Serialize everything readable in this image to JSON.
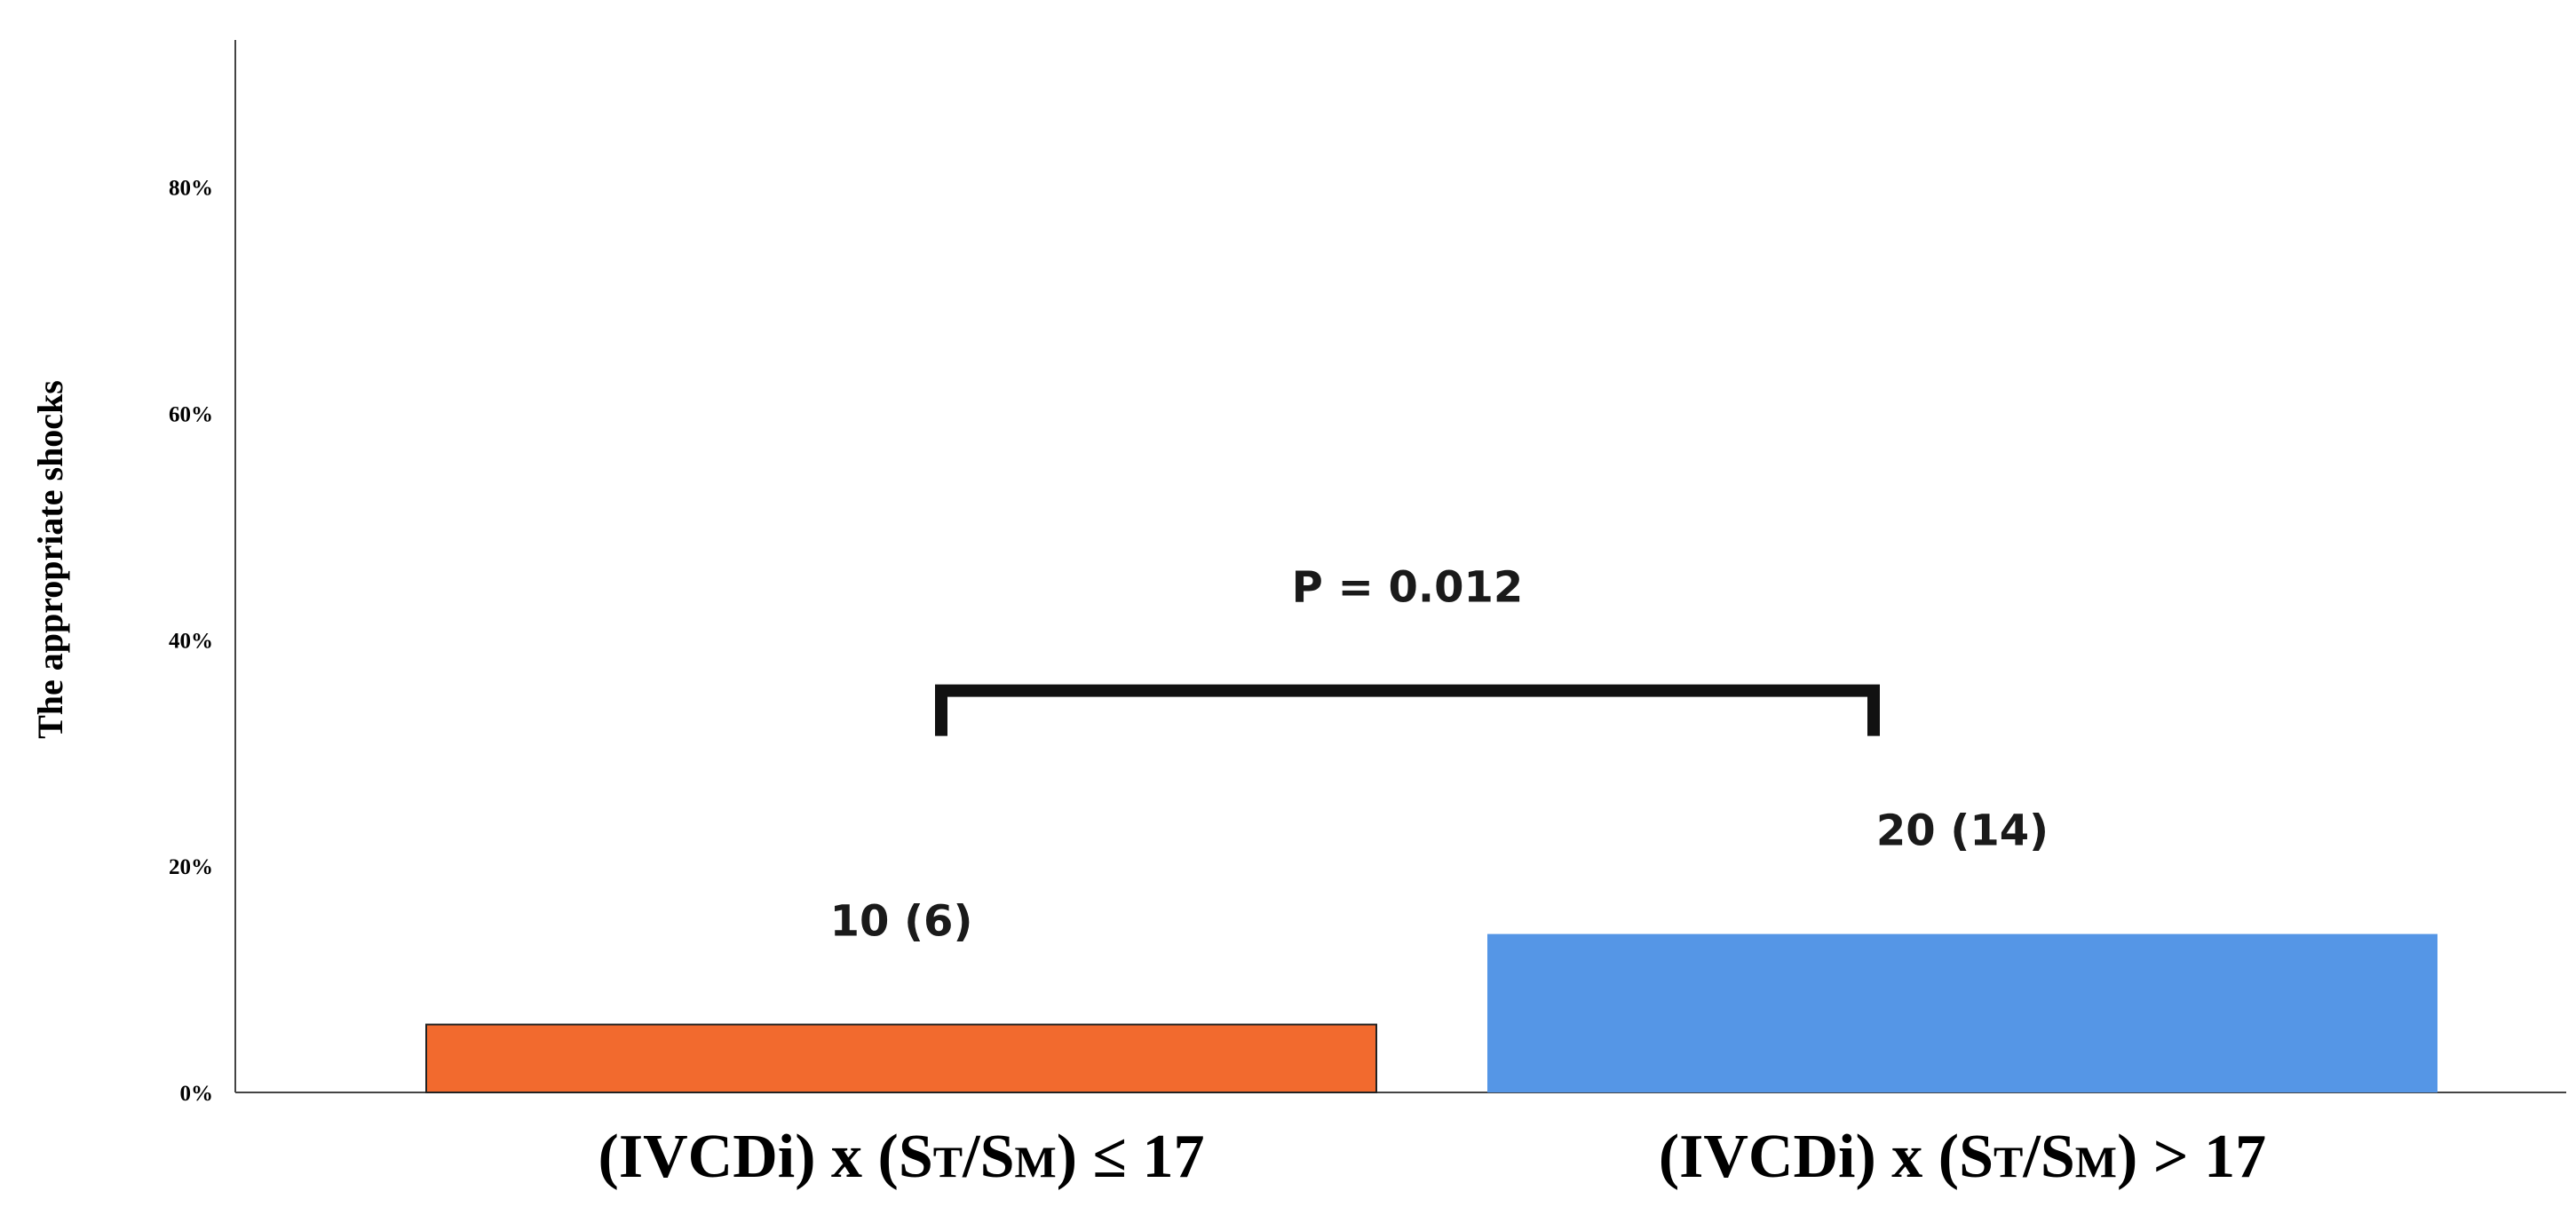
{
  "chart_data": {
    "type": "bar",
    "ylabel": "The appropriate shocks",
    "ylim": [
      0,
      93
    ],
    "yticks": [
      0,
      20,
      40,
      60,
      80
    ],
    "ytick_labels": [
      "0%",
      "20%",
      "40%",
      "60%",
      "80%"
    ],
    "categories": [
      {
        "parts": [
          {
            "text": "(IVCDi) x (S",
            "sub": false
          },
          {
            "text": "T",
            "sub": true
          },
          {
            "text": "/S",
            "sub": false
          },
          {
            "text": "M",
            "sub": true
          },
          {
            "text": ") ≤ 17",
            "sub": false
          }
        ]
      },
      {
        "parts": [
          {
            "text": "(IVCDi) x (S",
            "sub": false
          },
          {
            "text": "T",
            "sub": true
          },
          {
            "text": "/S",
            "sub": false
          },
          {
            "text": "M",
            "sub": true
          },
          {
            "text": ") > 17",
            "sub": false
          }
        ]
      }
    ],
    "values": [
      6,
      14
    ],
    "data_labels": [
      "10 (6)",
      "20 (14)"
    ],
    "colors": [
      "#f26a2e",
      "#5596e6"
    ],
    "comparison": {
      "label": "P = 0.012",
      "level": 35.5,
      "drop_to": 31.5
    }
  }
}
